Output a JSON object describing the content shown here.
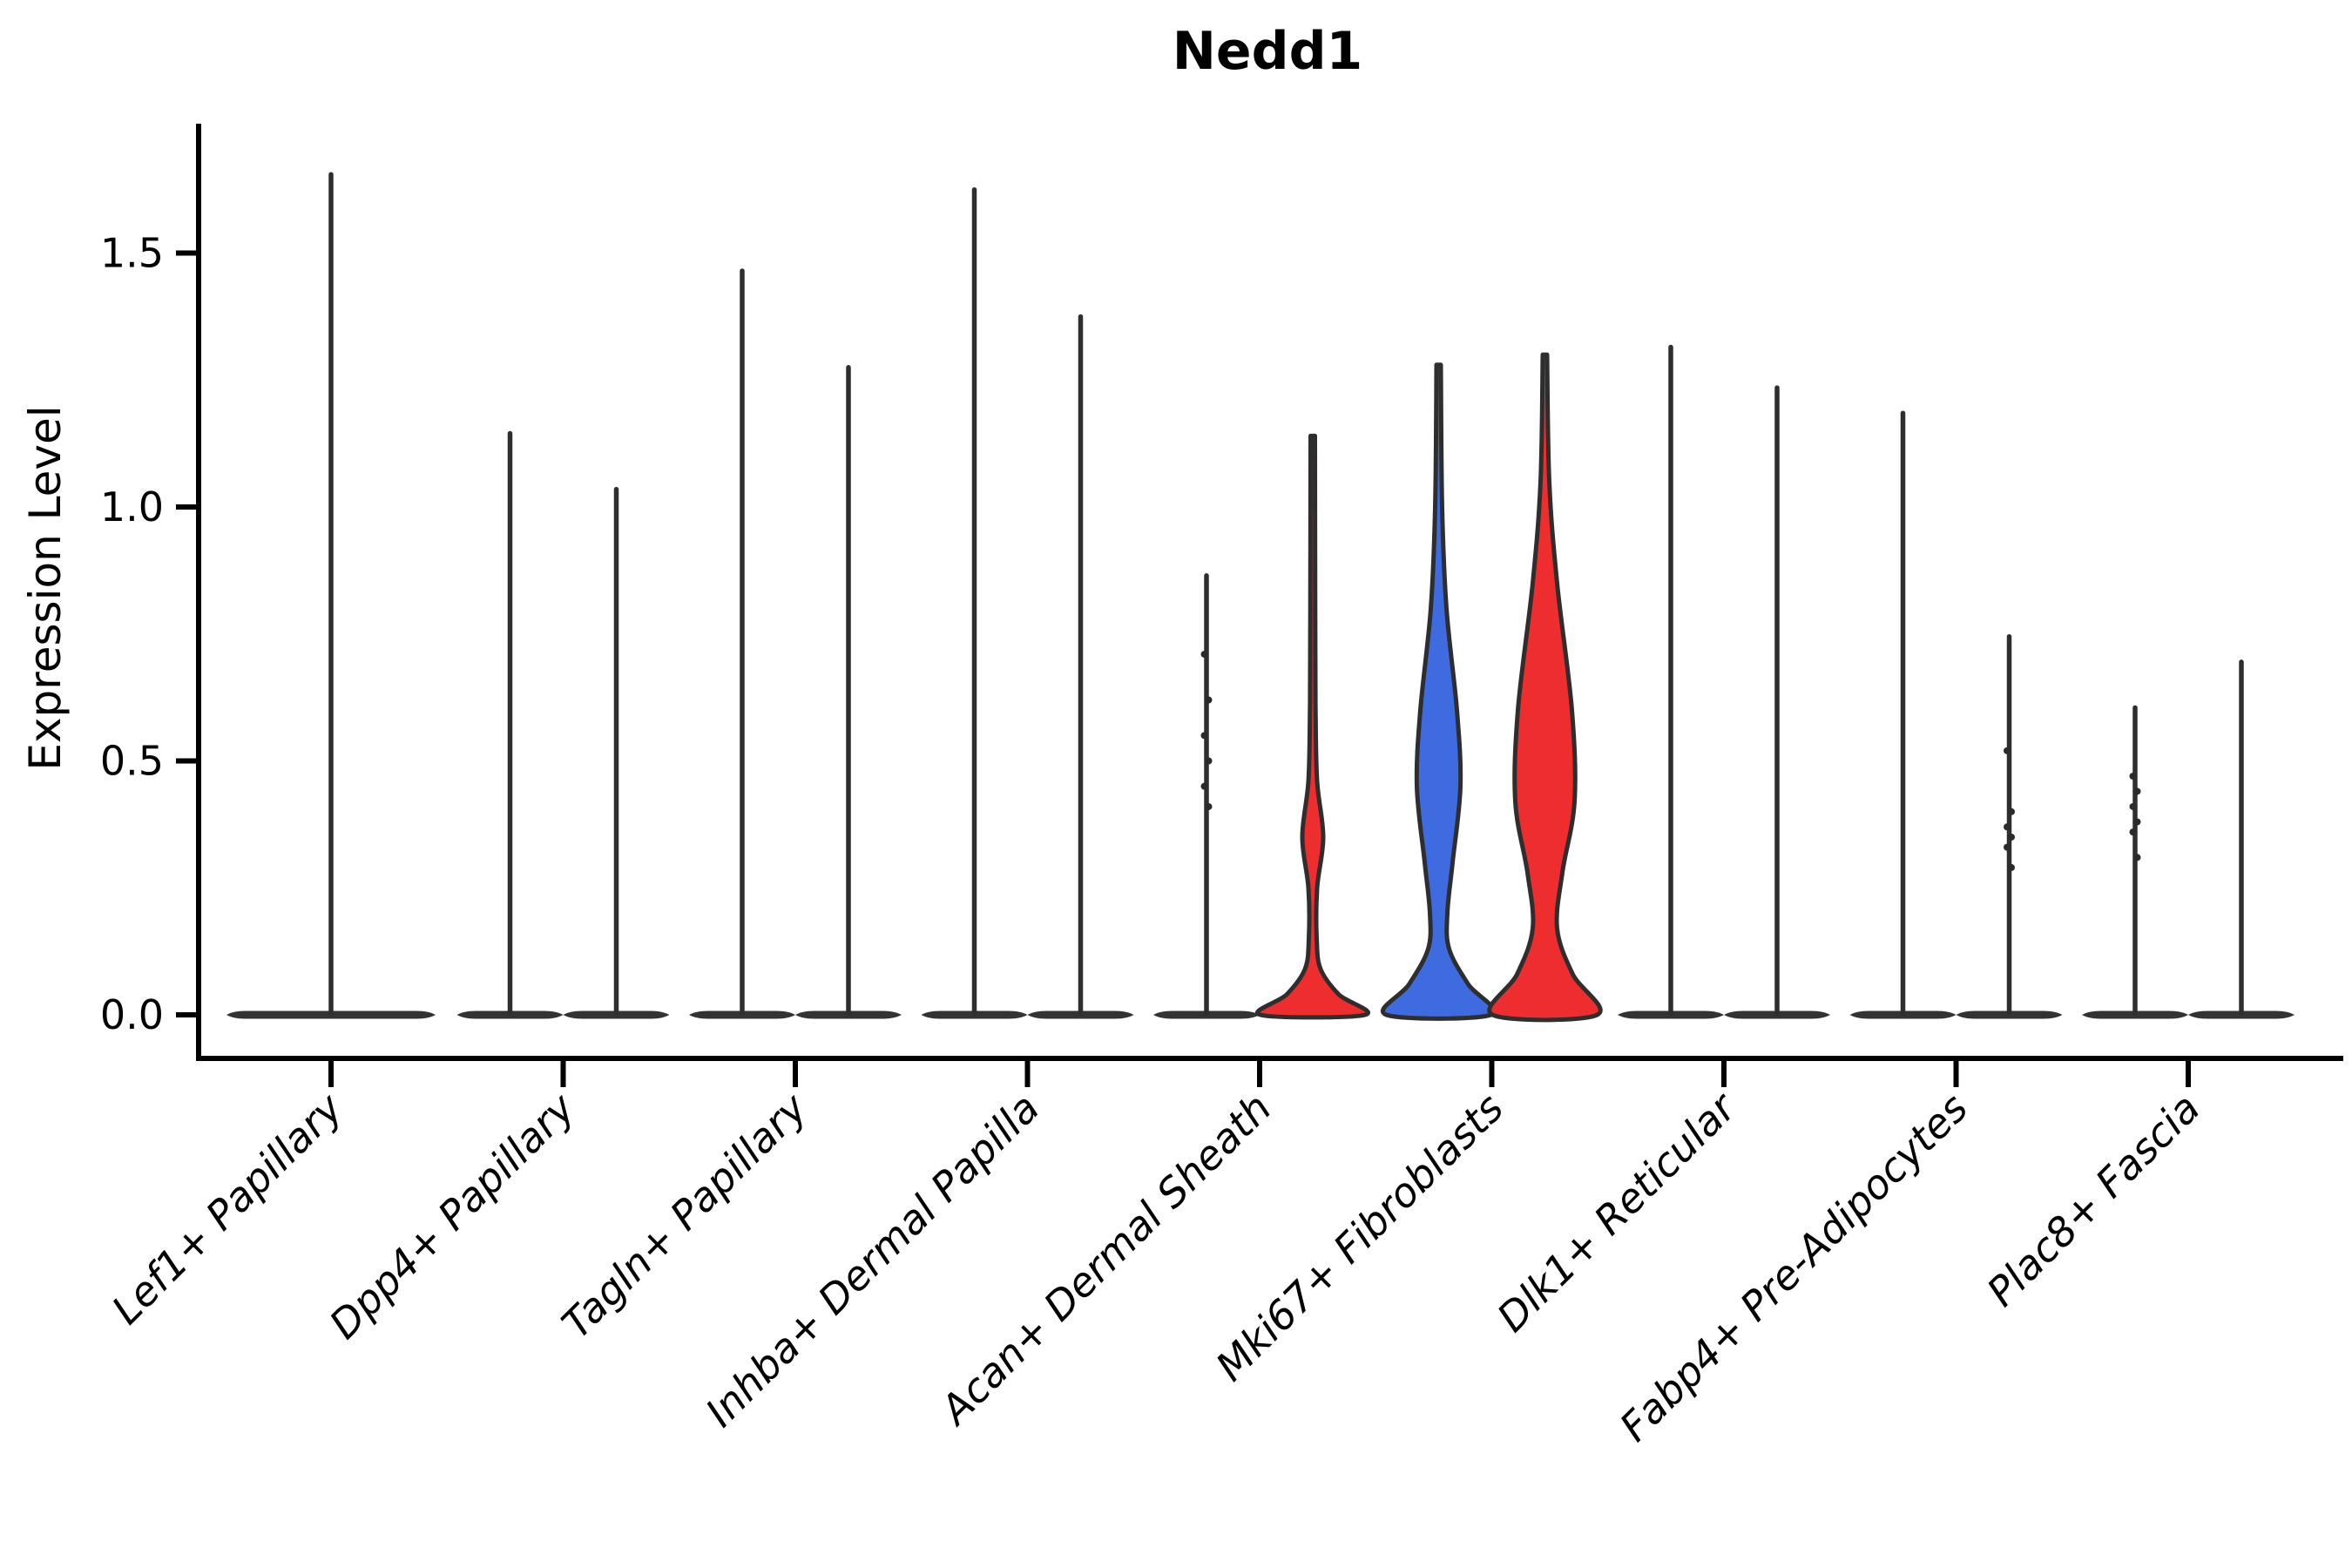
{
  "figure": {
    "title": "Nedd1",
    "ylabel": "Expression Level"
  },
  "chart_data": {
    "type": "violin",
    "title": "Nedd1",
    "xlabel": "",
    "ylabel": "Expression Level",
    "ylim": [
      0,
      1.76
    ],
    "yticks": [
      "0.0",
      "0.5",
      "1.0",
      "1.5"
    ],
    "grid": false,
    "legend_position": "none",
    "style_note": "split violin plot, two dodged violins per category; most violins are near-zero density thin spikes with flat bases",
    "colors": {
      "blue_fill": "#3E6BE0",
      "red_fill": "#EE2E2E",
      "outline": "#2E2E2E",
      "flat_base": "#333333",
      "axis": "#000000"
    },
    "categories": [
      "Lef1+ Papillary",
      "Dpp4+ Papillary",
      "Tagln+ Papillary",
      "Inhba+ Dermal Papilla",
      "Acan+ Dermal Sheath",
      "Mki67+ Fibroblasts",
      "Dlk1+ Reticular",
      "Fabp4+ Pre-Adipocytes",
      "Plac8+ Fascia"
    ],
    "violins": [
      {
        "name": "lef1-papillary-single",
        "cat": 0,
        "pos": "center",
        "max_expression": 1.66,
        "style": "spike",
        "fill": "none",
        "base": "flat",
        "base_halfwidth": 120
      },
      {
        "name": "dpp4-papillary-left",
        "cat": 1,
        "pos": "left",
        "max_expression": 1.15,
        "style": "spike",
        "fill": "none",
        "base": "flat"
      },
      {
        "name": "dpp4-papillary-right",
        "cat": 1,
        "pos": "right",
        "max_expression": 1.04,
        "style": "spike",
        "fill": "none",
        "base": "flat"
      },
      {
        "name": "tagln-papillary-left",
        "cat": 2,
        "pos": "left",
        "max_expression": 1.47,
        "style": "spike",
        "fill": "none",
        "base": "flat"
      },
      {
        "name": "tagln-papillary-right",
        "cat": 2,
        "pos": "right",
        "max_expression": 1.28,
        "style": "spike",
        "fill": "none",
        "base": "flat"
      },
      {
        "name": "inhba-dermal-papilla-left",
        "cat": 3,
        "pos": "left",
        "max_expression": 1.63,
        "style": "spike",
        "fill": "none",
        "base": "flat"
      },
      {
        "name": "inhba-dermal-papilla-right",
        "cat": 3,
        "pos": "right",
        "max_expression": 1.38,
        "style": "spike",
        "fill": "none",
        "base": "flat"
      },
      {
        "name": "acan-dermal-sheath-left",
        "cat": 4,
        "pos": "left",
        "max_expression": 0.87,
        "style": "spike",
        "fill": "none",
        "base": "flat",
        "outlier_dots": [
          0.71,
          0.62,
          0.55,
          0.5,
          0.45,
          0.41
        ]
      },
      {
        "name": "acan-dermal-sheath-right",
        "cat": 4,
        "pos": "right",
        "max_expression": 1.14,
        "style": "density",
        "fill": "#EE2E2E",
        "base": "bell",
        "width_profile": [
          [
            1.14,
            2.5
          ],
          [
            0.8,
            2.8
          ],
          [
            0.6,
            3.2
          ],
          [
            0.46,
            5
          ],
          [
            0.35,
            12
          ],
          [
            0.25,
            5
          ],
          [
            0.15,
            4.5
          ],
          [
            0.09,
            9
          ],
          [
            0.04,
            30
          ],
          [
            0.0,
            60
          ]
        ]
      },
      {
        "name": "mki67-fibroblasts-left",
        "cat": 5,
        "pos": "left",
        "max_expression": 1.28,
        "style": "density",
        "fill": "#3E6BE0",
        "base": "bell",
        "width_profile": [
          [
            1.28,
            2.5
          ],
          [
            1.0,
            4
          ],
          [
            0.8,
            9
          ],
          [
            0.6,
            21
          ],
          [
            0.45,
            25
          ],
          [
            0.3,
            16
          ],
          [
            0.2,
            10
          ],
          [
            0.13,
            12
          ],
          [
            0.06,
            34
          ],
          [
            0.0,
            60
          ]
        ]
      },
      {
        "name": "mki67-fibroblasts-right",
        "cat": 5,
        "pos": "right",
        "max_expression": 1.3,
        "style": "density",
        "fill": "#EE2E2E",
        "base": "bell",
        "width_profile": [
          [
            1.3,
            2.5
          ],
          [
            1.05,
            5
          ],
          [
            0.85,
            14
          ],
          [
            0.6,
            31
          ],
          [
            0.42,
            34
          ],
          [
            0.28,
            20
          ],
          [
            0.17,
            14
          ],
          [
            0.08,
            32
          ],
          [
            0.0,
            60
          ]
        ]
      },
      {
        "name": "dlk1-reticular-left",
        "cat": 6,
        "pos": "left",
        "max_expression": 1.32,
        "style": "spike",
        "fill": "none",
        "base": "flat"
      },
      {
        "name": "dlk1-reticular-right",
        "cat": 6,
        "pos": "right",
        "max_expression": 1.24,
        "style": "spike",
        "fill": "none",
        "base": "flat"
      },
      {
        "name": "fabp4-pre-adipocytes-left",
        "cat": 7,
        "pos": "left",
        "max_expression": 1.19,
        "style": "spike",
        "fill": "none",
        "base": "flat"
      },
      {
        "name": "fabp4-pre-adipocytes-right",
        "cat": 7,
        "pos": "right",
        "max_expression": 0.75,
        "style": "spike",
        "fill": "none",
        "base": "flat",
        "outlier_dots": [
          0.52,
          0.4,
          0.37,
          0.35,
          0.33,
          0.29
        ]
      },
      {
        "name": "plac8-fascia-left",
        "cat": 8,
        "pos": "left",
        "max_expression": 0.61,
        "style": "spike",
        "fill": "none",
        "base": "flat",
        "outlier_dots": [
          0.47,
          0.44,
          0.41,
          0.38,
          0.36,
          0.31
        ]
      },
      {
        "name": "plac8-fascia-right",
        "cat": 8,
        "pos": "right",
        "max_expression": 0.7,
        "style": "spike",
        "fill": "none",
        "base": "flat"
      }
    ]
  }
}
